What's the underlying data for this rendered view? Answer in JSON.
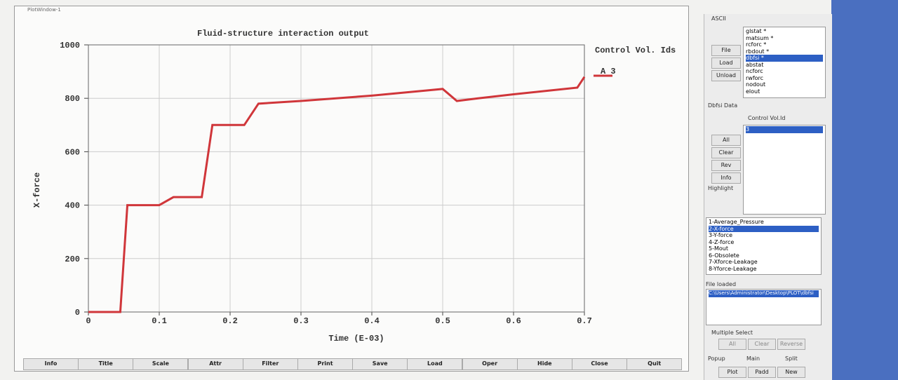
{
  "window_title": "PlotWindow-1",
  "chart_data": {
    "type": "line",
    "title": "Fluid-structure interaction output",
    "xlabel": "Time (E-03)",
    "ylabel": "X-force",
    "legend_title": "Control Vol. Ids",
    "series": [
      {
        "name": "A 3",
        "color": "#d0363a",
        "x": [
          0,
          0.045,
          0.055,
          0.1,
          0.12,
          0.16,
          0.175,
          0.22,
          0.24,
          0.3,
          0.4,
          0.5,
          0.52,
          0.55,
          0.6,
          0.69,
          0.7
        ],
        "values": [
          0,
          0,
          400,
          400,
          430,
          430,
          700,
          700,
          780,
          790,
          810,
          835,
          790,
          800,
          815,
          840,
          880
        ]
      }
    ],
    "xlim": [
      0,
      0.7
    ],
    "ylim": [
      0,
      1000
    ],
    "xticks": [
      0,
      0.1,
      0.2,
      0.3,
      0.4,
      0.5,
      0.6,
      0.7
    ],
    "yticks": [
      0,
      200,
      400,
      600,
      800,
      1000
    ],
    "grid": true
  },
  "toolbar": [
    "Info",
    "Title",
    "Scale",
    "Attr",
    "Filter",
    "Print",
    "Save",
    "Load",
    "Oper",
    "Hide",
    "Close",
    "Quit"
  ],
  "panel": {
    "ascii_label": "ASCII",
    "file_buttons": [
      "File",
      "Load",
      "Unload"
    ],
    "files": [
      "glstat *",
      "matsum *",
      "rcforc *",
      "rbdout *",
      "dbfsi *",
      "abstat",
      "ncforc",
      "rwforc",
      "nodout",
      "elout"
    ],
    "data_label": "Dbfsi Data",
    "id_label": "Control Vol.Id",
    "ids": [
      "3"
    ],
    "id_buttons": [
      "All",
      "Clear",
      "Rev",
      "Info"
    ],
    "highlight": "Highlight",
    "components": [
      "1-Average_Pressure",
      "2-X-force",
      "3-Y-force",
      "4-Z-force",
      "5-Mout",
      "6-Obsolete",
      "7-Xforce-Leakage",
      "8-Yforce-Leakage"
    ],
    "file_loaded_label": "File loaded",
    "file_loaded": "C:\\Users\\Administrator\\Desktop\\PLOT\\dbfsi",
    "multi_label": "Multiple Select",
    "multi_buttons": [
      "All",
      "Clear",
      "Reverse"
    ],
    "radios": [
      "Popup",
      "Main",
      "Split"
    ],
    "actions": [
      "Plot",
      "Padd",
      "New"
    ]
  }
}
